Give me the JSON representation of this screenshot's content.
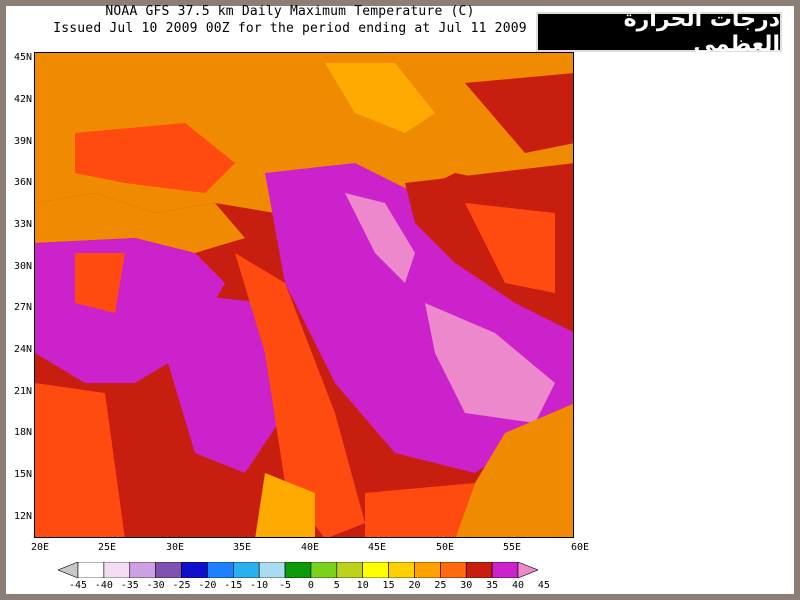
{
  "title": {
    "line1": "NOAA GFS 37.5 km Daily Maximum Temperature (C)",
    "line2": "Issued Jul 10 2009 00Z for the period ending at Jul 11 2009"
  },
  "badge": {
    "text": "درجات الحرارة العظمى"
  },
  "map": {
    "lat_labels": [
      "45N",
      "42N",
      "39N",
      "36N",
      "33N",
      "30N",
      "27N",
      "24N",
      "21N",
      "18N",
      "15N",
      "12N"
    ],
    "lon_labels": [
      "20E",
      "25E",
      "30E",
      "35E",
      "40E",
      "45E",
      "50E",
      "55E",
      "60E"
    ],
    "region_colors": {
      "sea": "#f08a00",
      "warm": "#ff4a10",
      "hot": "#c81e10",
      "very_hot": "#cc22cc",
      "extreme": "#ee88cc",
      "mild": "#ffaa00"
    }
  },
  "legend": {
    "labels": [
      "-45",
      "-40",
      "-35",
      "-30",
      "-25",
      "-20",
      "-15",
      "-10",
      "-5",
      "0",
      "5",
      "10",
      "15",
      "20",
      "25",
      "30",
      "35",
      "40",
      "45"
    ],
    "colors": [
      "#c8c8c8",
      "#ffffff",
      "#f2ddf2",
      "#cf9fe5",
      "#8050b0",
      "#1010cc",
      "#1e7fff",
      "#28b0f0",
      "#aadcf0",
      "#0a9a0a",
      "#7ad21c",
      "#bcd21c",
      "#ffff00",
      "#ffd000",
      "#ffa000",
      "#ff6a10",
      "#c81e10",
      "#cc22cc",
      "#ee88cc"
    ]
  }
}
